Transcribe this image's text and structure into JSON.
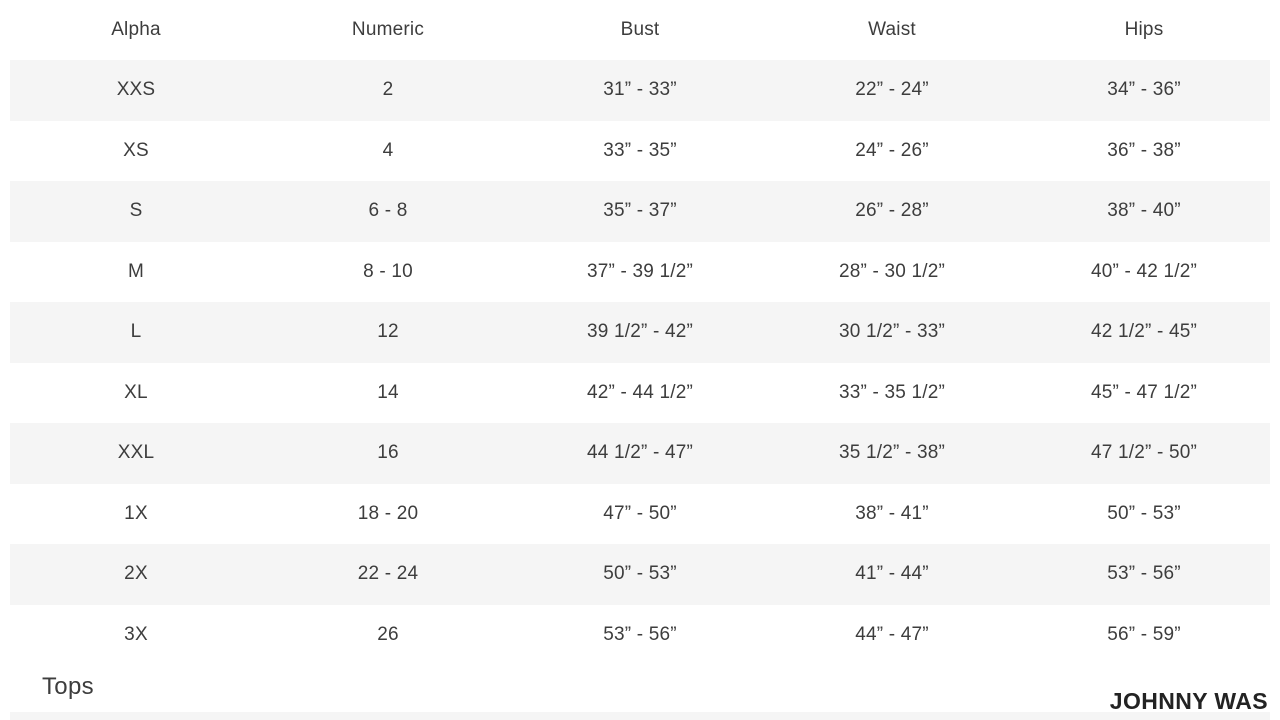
{
  "size_chart": {
    "headers": [
      "Alpha",
      "Numeric",
      "Bust",
      "Waist",
      "Hips"
    ],
    "rows": [
      [
        "XXS",
        "2",
        "31” - 33”",
        "22” - 24”",
        "34” - 36”"
      ],
      [
        "XS",
        "4",
        "33” - 35”",
        "24” - 26”",
        "36” - 38”"
      ],
      [
        "S",
        "6 - 8",
        "35” - 37”",
        "26” - 28”",
        "38” - 40”"
      ],
      [
        "M",
        "8 - 10",
        "37” - 39 1/2”",
        "28” - 30 1/2”",
        "40” - 42 1/2”"
      ],
      [
        "L",
        "12",
        "39 1/2” - 42”",
        "30 1/2” - 33”",
        "42 1/2” - 45”"
      ],
      [
        "XL",
        "14",
        "42” - 44 1/2”",
        "33” - 35 1/2”",
        "45” - 47 1/2”"
      ],
      [
        "XXL",
        "16",
        "44 1/2” - 47”",
        "35 1/2” - 38”",
        "47 1/2” - 50”"
      ],
      [
        "1X",
        "18 - 20",
        "47” - 50”",
        "38” - 41”",
        "50” - 53”"
      ],
      [
        "2X",
        "22 - 24",
        "50” - 53”",
        "41” - 44”",
        "53” - 56”"
      ],
      [
        "3X",
        "26",
        "53” - 56”",
        "44” - 47”",
        "56” - 59”"
      ]
    ]
  },
  "footer": {
    "section_label": "Tops",
    "brand": "JOHNNY WAS"
  },
  "colors": {
    "row_stripe": "#f5f5f5",
    "text": "#3d3d3d",
    "brand_text": "#232323"
  }
}
